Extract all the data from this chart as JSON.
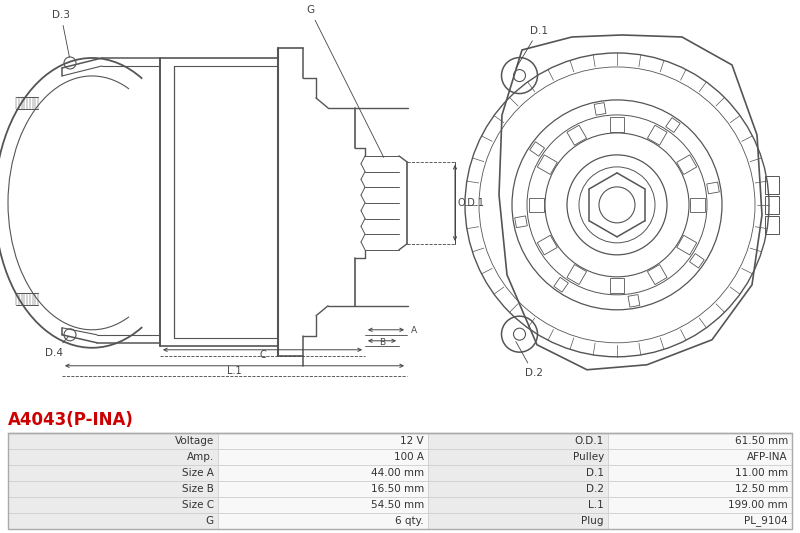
{
  "title": "A4043(P-INA)",
  "title_color": "#cc0000",
  "bg_color": "#ffffff",
  "table_border_color": "#cccccc",
  "table_label_bg": "#ebebeb",
  "table_value_bg": "#f8f8f8",
  "line_color": "#555555",
  "dim_color": "#444444",
  "table_data": [
    [
      "Voltage",
      "12 V",
      "O.D.1",
      "61.50 mm"
    ],
    [
      "Amp.",
      "100 A",
      "Pulley",
      "AFP-INA"
    ],
    [
      "Size A",
      "44.00 mm",
      "D.1",
      "11.00 mm"
    ],
    [
      "Size B",
      "16.50 mm",
      "D.2",
      "12.50 mm"
    ],
    [
      "Size C",
      "54.50 mm",
      "L.1",
      "199.00 mm"
    ],
    [
      "G",
      "6 qty.",
      "Plug",
      "PL_9104"
    ]
  ]
}
